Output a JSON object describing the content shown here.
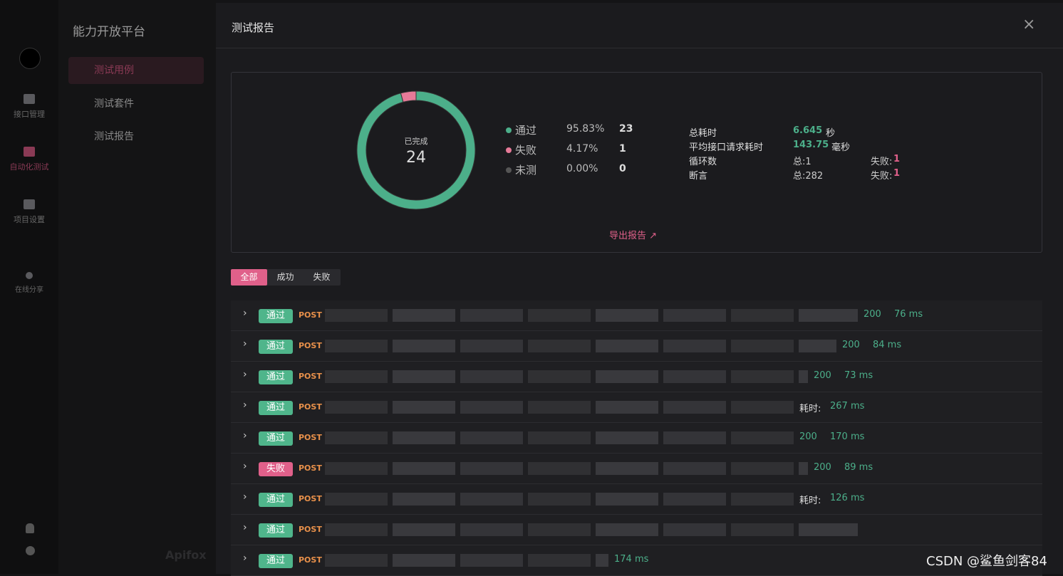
{
  "sidebar": {
    "nav": [
      "接口管理",
      "自动化测试",
      "项目设置",
      "在线分享"
    ]
  },
  "project": {
    "title": "能力开放平台",
    "menu": [
      "测试用例",
      "测试套件",
      "测试报告"
    ],
    "brand": "Apifox"
  },
  "modal": {
    "title": "测试报告",
    "close": "×",
    "summary": {
      "center_label": "已完成",
      "total": 24,
      "legend": [
        {
          "name": "通过",
          "percent": "95.83%",
          "count": 23,
          "color": "#4caf8a"
        },
        {
          "name": "失败",
          "percent": "4.17%",
          "count": 1,
          "color": "#e67a98"
        },
        {
          "name": "未测",
          "percent": "0.00%",
          "count": 0,
          "color": "#555555"
        }
      ],
      "stats": [
        {
          "label": "总耗时",
          "value": "6.645",
          "unit": "秒"
        },
        {
          "label": "平均接口请求耗时",
          "value": "143.75",
          "unit": "毫秒"
        },
        {
          "label": "循环数",
          "total": "总:1",
          "fail_label": "失败:",
          "fail": 1
        },
        {
          "label": "断言",
          "total": "总:282",
          "fail_label": "失败:",
          "fail": 1
        }
      ],
      "export": "导出报告"
    },
    "tabs": [
      "全部",
      "成功",
      "失败"
    ],
    "rows": [
      {
        "status": "通过",
        "method": "POST",
        "tail": "200",
        "time": "76 ms"
      },
      {
        "status": "通过",
        "method": "POST",
        "tail": "200",
        "time": "84 ms"
      },
      {
        "status": "通过",
        "method": "POST",
        "tail": "200",
        "time": "73 ms"
      },
      {
        "status": "通过",
        "method": "POST",
        "tail": "耗时:",
        "time": "267 ms"
      },
      {
        "status": "通过",
        "method": "POST",
        "tail": "200",
        "time": "170 ms"
      },
      {
        "status": "失败",
        "method": "POST",
        "tail": "200",
        "time": "89 ms"
      },
      {
        "status": "通过",
        "method": "POST",
        "tail": "耗时:",
        "time": "126 ms"
      },
      {
        "status": "通过",
        "method": "POST"
      },
      {
        "status": "通过",
        "method": "POST",
        "time": "174 ms"
      }
    ]
  },
  "watermark": "CSDN @鲨鱼剑客84"
}
